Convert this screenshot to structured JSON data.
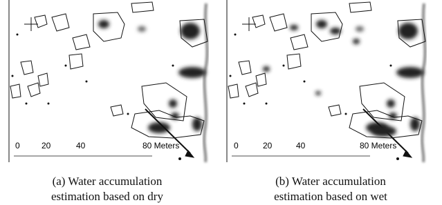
{
  "panels": [
    {
      "scale_labels": [
        "0",
        "20",
        "40",
        "80 Meters"
      ],
      "caption": [
        "(a)  Water accumulation",
        "estimation based on dry"
      ]
    },
    {
      "scale_labels": [
        "0",
        "20",
        "40",
        "80 Meters"
      ],
      "caption": [
        "(b) Water accumulation",
        "estimation based on wet"
      ]
    }
  ]
}
